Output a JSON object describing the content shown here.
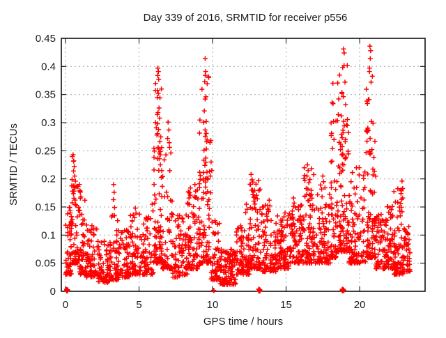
{
  "figure": {
    "background": "#ffffff",
    "text_color": "#1a1a1a"
  },
  "chart_data": {
    "type": "scatter",
    "title": "Day 339 of 2016, SRMTID for receiver p556",
    "xlabel": "GPS time / hours",
    "ylabel": "SRMTID / TECUs",
    "xlim": [
      -0.28,
      24.45
    ],
    "ylim": [
      0,
      0.45
    ],
    "xticks": [
      0,
      5,
      10,
      15,
      20
    ],
    "xtick_labels": [
      "0",
      "5",
      "10",
      "15",
      "20"
    ],
    "yticks": [
      0,
      0.05,
      0.1,
      0.15,
      0.2,
      0.25,
      0.3,
      0.35,
      0.4,
      0.45
    ],
    "ytick_labels": [
      "0",
      "0.05",
      "0.1",
      "0.15",
      "0.2",
      "0.25",
      "0.3",
      "0.35",
      "0.4",
      "0.45"
    ],
    "grid": true,
    "grid_style": "dashed",
    "legend": "none",
    "colors": {
      "marker": "#ff0000",
      "grid": "#a6a6a6",
      "border": "#000000"
    },
    "marker": {
      "shape": "plus",
      "color": "#ff0000",
      "size": 7
    },
    "series": [
      {
        "name": "SRMTID",
        "seed": 339,
        "description": "Dense scatter of ~2400 points; band 0.03-0.10 TECUs with spikes near 0.6 h (0.24), 6.3 h (0.40), 9.5 h (0.41), 18.2 h (0.37), 18.9 h (0.43), 20.7 h (0.44); quiet dip 10.5-11.6 h; clusters at zero near 0.1, 10.1, 13.2 and 18.9 h",
        "density_bins_columns": [
          "t_start",
          "t_end",
          "count",
          "y_min",
          "y_max",
          "skew"
        ],
        "density_bins": [
          [
            0.0,
            0.4,
            50,
            0.03,
            0.15,
            1.8
          ],
          [
            0.4,
            0.9,
            60,
            0.05,
            0.24,
            2.2
          ],
          [
            0.9,
            1.4,
            55,
            0.03,
            0.185,
            2.4
          ],
          [
            1.4,
            2.2,
            70,
            0.025,
            0.12,
            2.0
          ],
          [
            2.2,
            3.1,
            80,
            0.015,
            0.09,
            1.8
          ],
          [
            3.1,
            3.6,
            45,
            0.02,
            0.145,
            2.6
          ],
          [
            3.6,
            4.4,
            70,
            0.025,
            0.11,
            1.8
          ],
          [
            4.4,
            5.1,
            60,
            0.03,
            0.145,
            2.2
          ],
          [
            5.1,
            6.0,
            70,
            0.03,
            0.135,
            1.9
          ],
          [
            6.0,
            6.6,
            90,
            0.05,
            0.38,
            2.6
          ],
          [
            6.6,
            7.3,
            60,
            0.04,
            0.27,
            3.4
          ],
          [
            7.3,
            8.3,
            80,
            0.025,
            0.14,
            1.8
          ],
          [
            8.3,
            9.1,
            80,
            0.04,
            0.185,
            2.0
          ],
          [
            9.1,
            9.9,
            95,
            0.05,
            0.4,
            3.0
          ],
          [
            9.9,
            10.5,
            55,
            0.02,
            0.13,
            2.2
          ],
          [
            10.5,
            11.6,
            110,
            0.012,
            0.075,
            1.5
          ],
          [
            11.6,
            12.5,
            90,
            0.03,
            0.12,
            1.8
          ],
          [
            12.5,
            13.3,
            80,
            0.04,
            0.2,
            2.5
          ],
          [
            13.3,
            14.3,
            85,
            0.035,
            0.155,
            2.0
          ],
          [
            14.3,
            15.2,
            85,
            0.04,
            0.14,
            1.8
          ],
          [
            15.2,
            16.2,
            95,
            0.05,
            0.165,
            1.8
          ],
          [
            16.2,
            17.0,
            85,
            0.05,
            0.22,
            2.2
          ],
          [
            17.0,
            18.0,
            85,
            0.05,
            0.19,
            1.9
          ],
          [
            18.0,
            18.45,
            50,
            0.06,
            0.34,
            2.8
          ],
          [
            18.45,
            19.25,
            105,
            0.07,
            0.41,
            2.6
          ],
          [
            19.25,
            20.4,
            110,
            0.05,
            0.22,
            2.0
          ],
          [
            20.4,
            21.1,
            90,
            0.06,
            0.4,
            3.2
          ],
          [
            21.1,
            22.3,
            110,
            0.04,
            0.155,
            1.7
          ],
          [
            22.3,
            23.0,
            80,
            0.03,
            0.185,
            2.2
          ],
          [
            23.0,
            23.45,
            45,
            0.035,
            0.12,
            1.8
          ]
        ],
        "zero_clusters_columns": [
          "t_center",
          "count",
          "t_spread"
        ],
        "zero_clusters": [
          [
            0.12,
            12,
            0.1
          ],
          [
            10.08,
            2,
            0.08
          ],
          [
            13.2,
            10,
            0.12
          ],
          [
            18.87,
            10,
            0.12
          ]
        ],
        "peak_points": [
          [
            0.52,
            0.243
          ],
          [
            0.57,
            0.232
          ],
          [
            0.6,
            0.222
          ],
          [
            0.55,
            0.214
          ],
          [
            0.63,
            0.205
          ],
          [
            0.68,
            0.196
          ],
          [
            0.72,
            0.186
          ],
          [
            0.48,
            0.178
          ],
          [
            0.95,
            0.19
          ],
          [
            1.0,
            0.178
          ],
          [
            1.05,
            0.168
          ],
          [
            3.28,
            0.19
          ],
          [
            3.31,
            0.176
          ],
          [
            3.26,
            0.163
          ],
          [
            3.34,
            0.149
          ],
          [
            3.3,
            0.135
          ],
          [
            4.75,
            0.148
          ],
          [
            4.8,
            0.139
          ],
          [
            4.7,
            0.131
          ],
          [
            5.9,
            0.155
          ],
          [
            5.95,
            0.143
          ],
          [
            6.28,
            0.397
          ],
          [
            6.32,
            0.391
          ],
          [
            6.27,
            0.384
          ],
          [
            6.34,
            0.377
          ],
          [
            6.31,
            0.352
          ],
          [
            6.24,
            0.345
          ],
          [
            6.36,
            0.326
          ],
          [
            6.29,
            0.318
          ],
          [
            6.4,
            0.308
          ],
          [
            6.26,
            0.298
          ],
          [
            6.33,
            0.288
          ],
          [
            6.22,
            0.278
          ],
          [
            6.42,
            0.266
          ],
          [
            6.3,
            0.256
          ],
          [
            6.37,
            0.246
          ],
          [
            6.25,
            0.236
          ],
          [
            6.45,
            0.225
          ],
          [
            6.35,
            0.215
          ],
          [
            6.98,
            0.301
          ],
          [
            7.03,
            0.287
          ],
          [
            6.95,
            0.272
          ],
          [
            7.08,
            0.256
          ],
          [
            8.35,
            0.177
          ],
          [
            8.4,
            0.166
          ],
          [
            8.3,
            0.157
          ],
          [
            8.8,
            0.19
          ],
          [
            8.85,
            0.178
          ],
          [
            8.75,
            0.168
          ],
          [
            9.5,
            0.414
          ],
          [
            9.53,
            0.391
          ],
          [
            9.47,
            0.373
          ],
          [
            9.55,
            0.346
          ],
          [
            9.5,
            0.342
          ],
          [
            9.44,
            0.321
          ],
          [
            9.57,
            0.302
          ],
          [
            9.5,
            0.287
          ],
          [
            9.6,
            0.266
          ],
          [
            9.42,
            0.251
          ],
          [
            9.54,
            0.237
          ],
          [
            9.48,
            0.224
          ],
          [
            9.62,
            0.212
          ],
          [
            9.38,
            0.2
          ],
          [
            9.9,
            0.23
          ],
          [
            9.95,
            0.215
          ],
          [
            9.85,
            0.205
          ],
          [
            12.3,
            0.155
          ],
          [
            12.35,
            0.146
          ],
          [
            12.25,
            0.14
          ],
          [
            12.62,
            0.208
          ],
          [
            12.68,
            0.198
          ],
          [
            12.58,
            0.19
          ],
          [
            12.72,
            0.18
          ],
          [
            13.85,
            0.162
          ],
          [
            13.9,
            0.152
          ],
          [
            13.8,
            0.145
          ],
          [
            15.5,
            0.166
          ],
          [
            15.55,
            0.157
          ],
          [
            16.45,
            0.225
          ],
          [
            16.5,
            0.215
          ],
          [
            16.42,
            0.205
          ],
          [
            16.55,
            0.193
          ],
          [
            16.48,
            0.182
          ],
          [
            16.6,
            0.172
          ],
          [
            17.5,
            0.205
          ],
          [
            17.55,
            0.195
          ],
          [
            18.18,
            0.37
          ],
          [
            18.13,
            0.336
          ],
          [
            18.23,
            0.302
          ],
          [
            18.09,
            0.281
          ],
          [
            18.26,
            0.27
          ],
          [
            18.9,
            0.431
          ],
          [
            18.95,
            0.424
          ],
          [
            18.85,
            0.398
          ],
          [
            19.0,
            0.372
          ],
          [
            18.8,
            0.352
          ],
          [
            19.05,
            0.332
          ],
          [
            18.75,
            0.312
          ],
          [
            19.1,
            0.296
          ],
          [
            18.88,
            0.282
          ],
          [
            19.02,
            0.266
          ],
          [
            18.7,
            0.252
          ],
          [
            19.08,
            0.238
          ],
          [
            18.93,
            0.225
          ],
          [
            20.7,
            0.436
          ],
          [
            20.75,
            0.428
          ],
          [
            20.72,
            0.414
          ],
          [
            20.67,
            0.391
          ],
          [
            20.78,
            0.372
          ],
          [
            20.64,
            0.341
          ],
          [
            20.8,
            0.302
          ],
          [
            20.71,
            0.272
          ],
          [
            20.76,
            0.246
          ],
          [
            22.88,
            0.196
          ],
          [
            22.83,
            0.181
          ],
          [
            22.93,
            0.166
          ],
          [
            22.79,
            0.156
          ]
        ]
      }
    ]
  }
}
